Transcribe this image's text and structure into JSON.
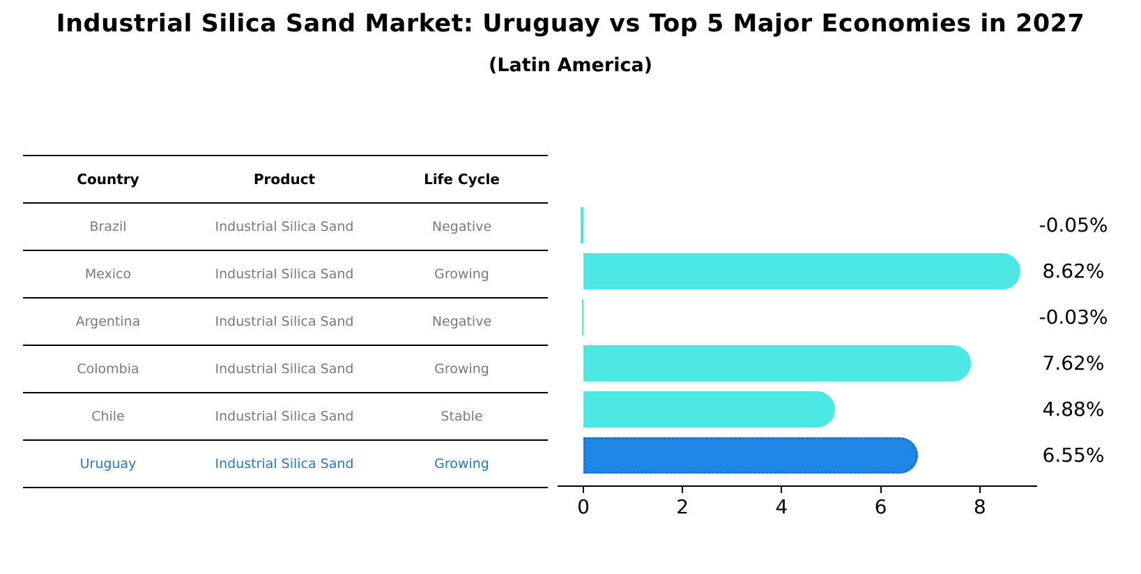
{
  "title": "Industrial Silica Sand Market: Uruguay vs Top 5 Major Economies in 2027",
  "subtitle": "(Latin America)",
  "table": {
    "headers": [
      "Country",
      "Product",
      "Life Cycle"
    ],
    "rows": [
      {
        "country": "Brazil",
        "product": "Industrial Silica Sand",
        "life_cycle": "Negative",
        "highlighted": false
      },
      {
        "country": "Mexico",
        "product": "Industrial Silica Sand",
        "life_cycle": "Growing",
        "highlighted": false
      },
      {
        "country": "Argentina",
        "product": "Industrial Silica Sand",
        "life_cycle": "Negative",
        "highlighted": false
      },
      {
        "country": "Colombia",
        "product": "Industrial Silica Sand",
        "life_cycle": "Growing",
        "highlighted": false
      },
      {
        "country": "Chile",
        "product": "Industrial Silica Sand",
        "life_cycle": "Stable",
        "highlighted": false
      },
      {
        "country": "Uruguay",
        "product": "Industrial Silica Sand",
        "life_cycle": "Growing",
        "highlighted": true
      }
    ]
  },
  "chart_data": {
    "type": "bar",
    "orientation": "horizontal",
    "title": "Industrial Silica Sand Market: Uruguay vs Top 5 Major Economies in 2027",
    "subtitle": "(Latin America)",
    "categories": [
      "Brazil",
      "Mexico",
      "Argentina",
      "Colombia",
      "Chile",
      "Uruguay"
    ],
    "values": [
      -0.05,
      8.62,
      -0.03,
      7.62,
      4.88,
      6.55
    ],
    "value_labels": [
      "-0.05%",
      "8.62%",
      "-0.03%",
      "7.62%",
      "4.88%",
      "6.55%"
    ],
    "xticks": [
      0,
      2,
      4,
      6,
      8
    ],
    "xlim": [
      -0.52,
      9.15
    ],
    "grid": false,
    "legend_position": "none",
    "bar_color": "#4be8e4",
    "highlight_color": "#1e87e5",
    "highlight_border_color": "#1a6fd6",
    "highlight_index": 5
  }
}
